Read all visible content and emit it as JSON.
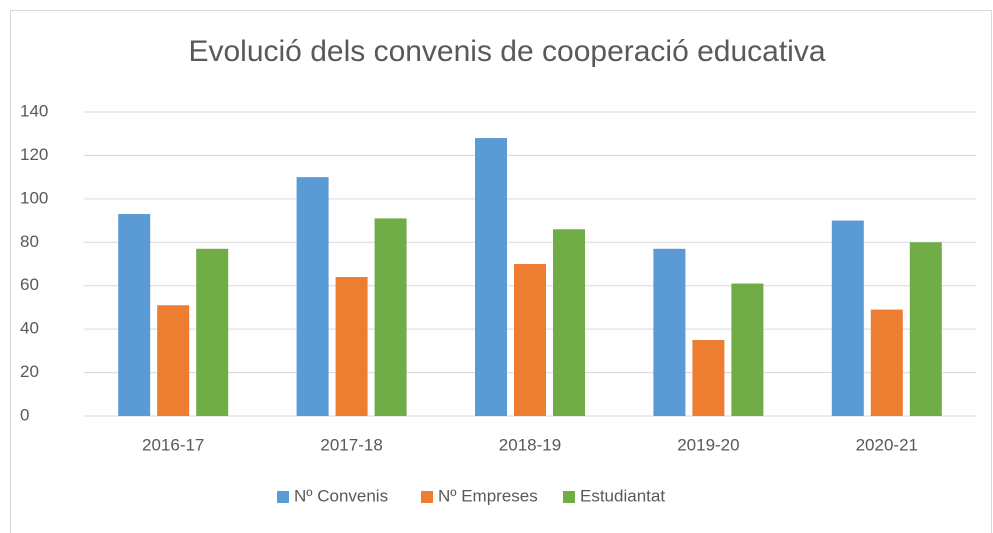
{
  "chart_data": {
    "type": "bar",
    "title": "Evolució dels convenis de cooperació educativa",
    "categories": [
      "2016-17",
      "2017-18",
      "2018-19",
      "2019-20",
      "2020-21"
    ],
    "series": [
      {
        "name": "Nº Convenis",
        "color": "#5b9bd5",
        "values": [
          93,
          110,
          128,
          77,
          90
        ]
      },
      {
        "name": "Nº Empreses",
        "color": "#ed7d31",
        "values": [
          51,
          64,
          70,
          35,
          49
        ]
      },
      {
        "name": "Estudiantat",
        "color": "#70ad47",
        "values": [
          77,
          91,
          86,
          61,
          80
        ]
      }
    ],
    "ylim": [
      0,
      140
    ],
    "yticks": [
      0,
      20,
      40,
      60,
      80,
      100,
      120,
      140
    ],
    "grid": true,
    "legend": "bottom"
  }
}
